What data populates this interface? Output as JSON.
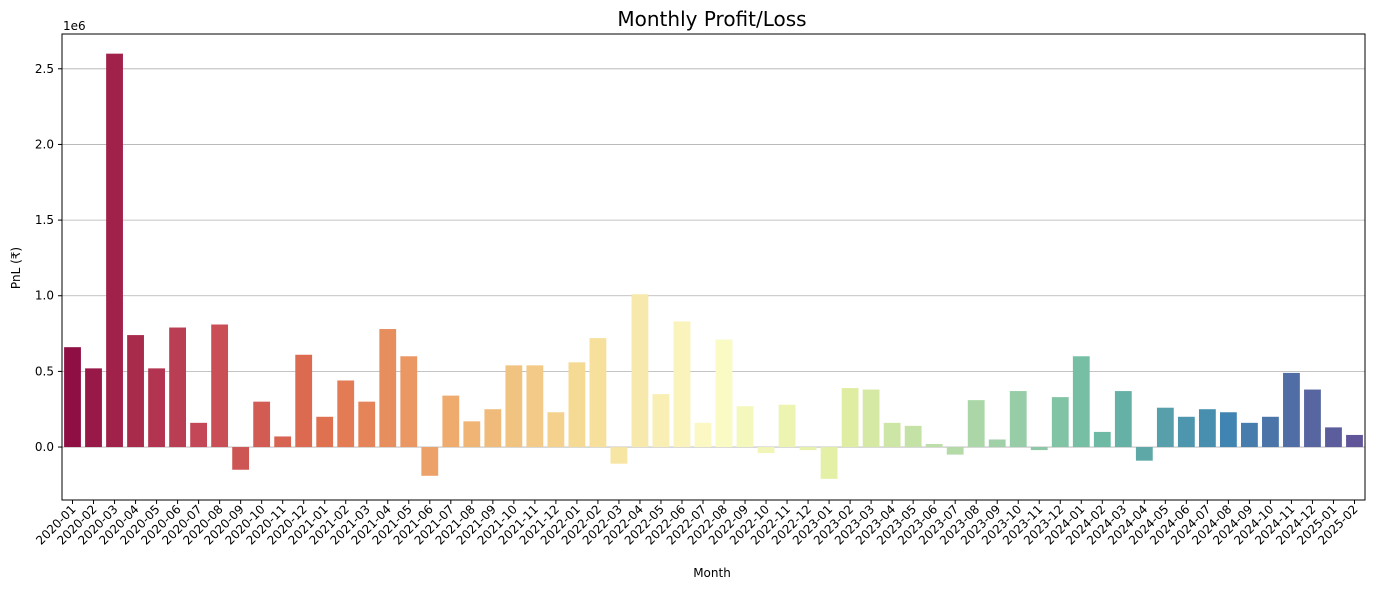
{
  "chart_data": {
    "type": "bar",
    "title": "Monthly Profit/Loss",
    "xlabel": "Month",
    "ylabel": "PnL (₹)",
    "y_offset_label": "1e6",
    "y_unit_scale": 1000000,
    "ylim": [
      -0.35,
      2.73
    ],
    "yticks": [
      0.0,
      0.5,
      1.0,
      1.5,
      2.0,
      2.5
    ],
    "ytick_labels": [
      "0.0",
      "0.5",
      "1.0",
      "1.5",
      "2.0",
      "2.5"
    ],
    "grid": "horizontal",
    "palette": "Spectral",
    "categories": [
      "2020-01",
      "2020-02",
      "2020-03",
      "2020-04",
      "2020-05",
      "2020-06",
      "2020-07",
      "2020-08",
      "2020-09",
      "2020-10",
      "2020-11",
      "2020-12",
      "2021-01",
      "2021-02",
      "2021-03",
      "2021-04",
      "2021-05",
      "2021-06",
      "2021-07",
      "2021-08",
      "2021-09",
      "2021-10",
      "2021-11",
      "2021-12",
      "2022-01",
      "2022-02",
      "2022-03",
      "2022-04",
      "2022-05",
      "2022-06",
      "2022-07",
      "2022-08",
      "2022-09",
      "2022-10",
      "2022-11",
      "2022-12",
      "2023-01",
      "2023-02",
      "2023-03",
      "2023-04",
      "2023-05",
      "2023-06",
      "2023-07",
      "2023-08",
      "2023-09",
      "2023-10",
      "2023-11",
      "2023-12",
      "2024-01",
      "2024-02",
      "2024-03",
      "2024-04",
      "2024-05",
      "2024-06",
      "2024-07",
      "2024-08",
      "2024-09",
      "2024-10",
      "2024-11",
      "2024-12",
      "2025-01",
      "2025-02"
    ],
    "values": [
      0.66,
      0.52,
      2.6,
      0.74,
      0.52,
      0.79,
      0.16,
      0.81,
      -0.15,
      0.3,
      0.07,
      0.61,
      0.2,
      0.44,
      0.3,
      0.78,
      0.6,
      -0.19,
      0.34,
      0.17,
      0.25,
      0.54,
      0.54,
      0.23,
      0.56,
      0.72,
      -0.11,
      1.01,
      0.35,
      0.83,
      0.16,
      0.71,
      0.27,
      -0.04,
      0.28,
      -0.02,
      -0.21,
      0.39,
      0.38,
      0.16,
      0.14,
      0.02,
      -0.05,
      0.31,
      0.05,
      0.37,
      -0.02,
      0.33,
      0.6,
      0.1,
      0.37,
      -0.09,
      0.26,
      0.2,
      0.25,
      0.23,
      0.16,
      0.2,
      0.49,
      0.38,
      0.13,
      0.08
    ]
  }
}
